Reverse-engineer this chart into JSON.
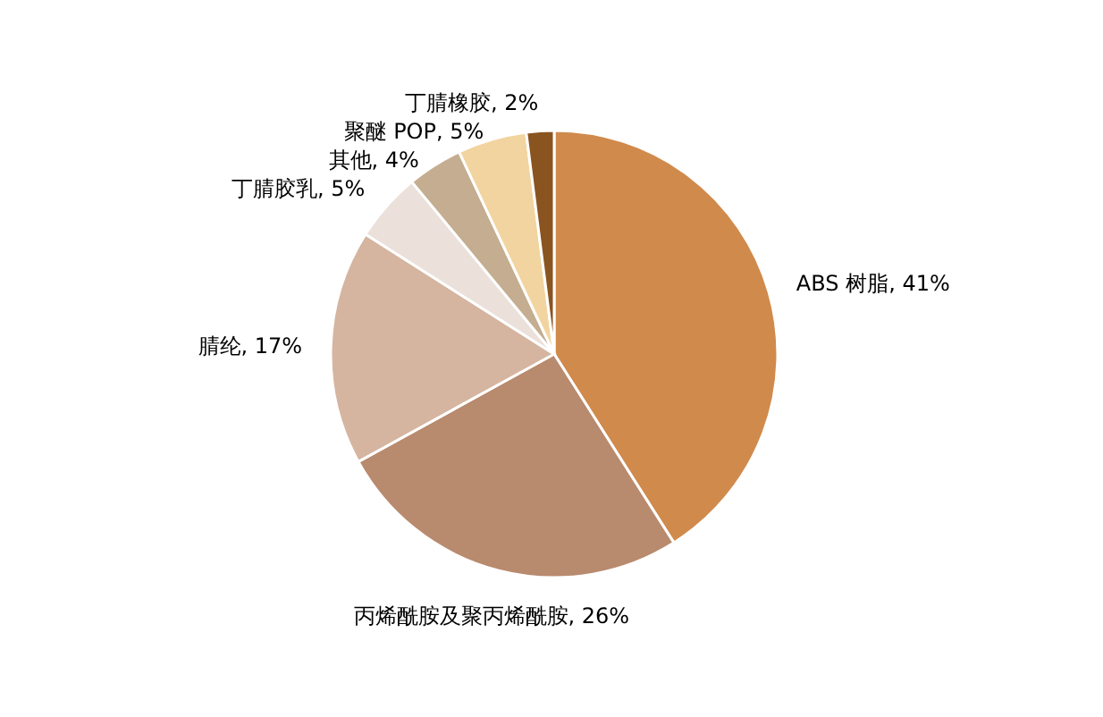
{
  "chart_data": {
    "type": "pie",
    "categories": [
      "ABS 树脂",
      "丙烯酰胺及聚丙烯酰胺",
      "腈纶",
      "丁腈胶乳",
      "其他",
      "聚醚 POP",
      "丁腈橡胶"
    ],
    "values": [
      41,
      26,
      17,
      5,
      4,
      5,
      2
    ],
    "colors": [
      "#d08a4c",
      "#b88a6e",
      "#d5b5a0",
      "#ebe0da",
      "#c4ad90",
      "#f2d4a0",
      "#8a5420"
    ],
    "value_labels": [
      ", 41%",
      ", 26%",
      ", 17%",
      ", 5%",
      ", 4%",
      ", 5%",
      ", 2%"
    ],
    "legend": false
  }
}
